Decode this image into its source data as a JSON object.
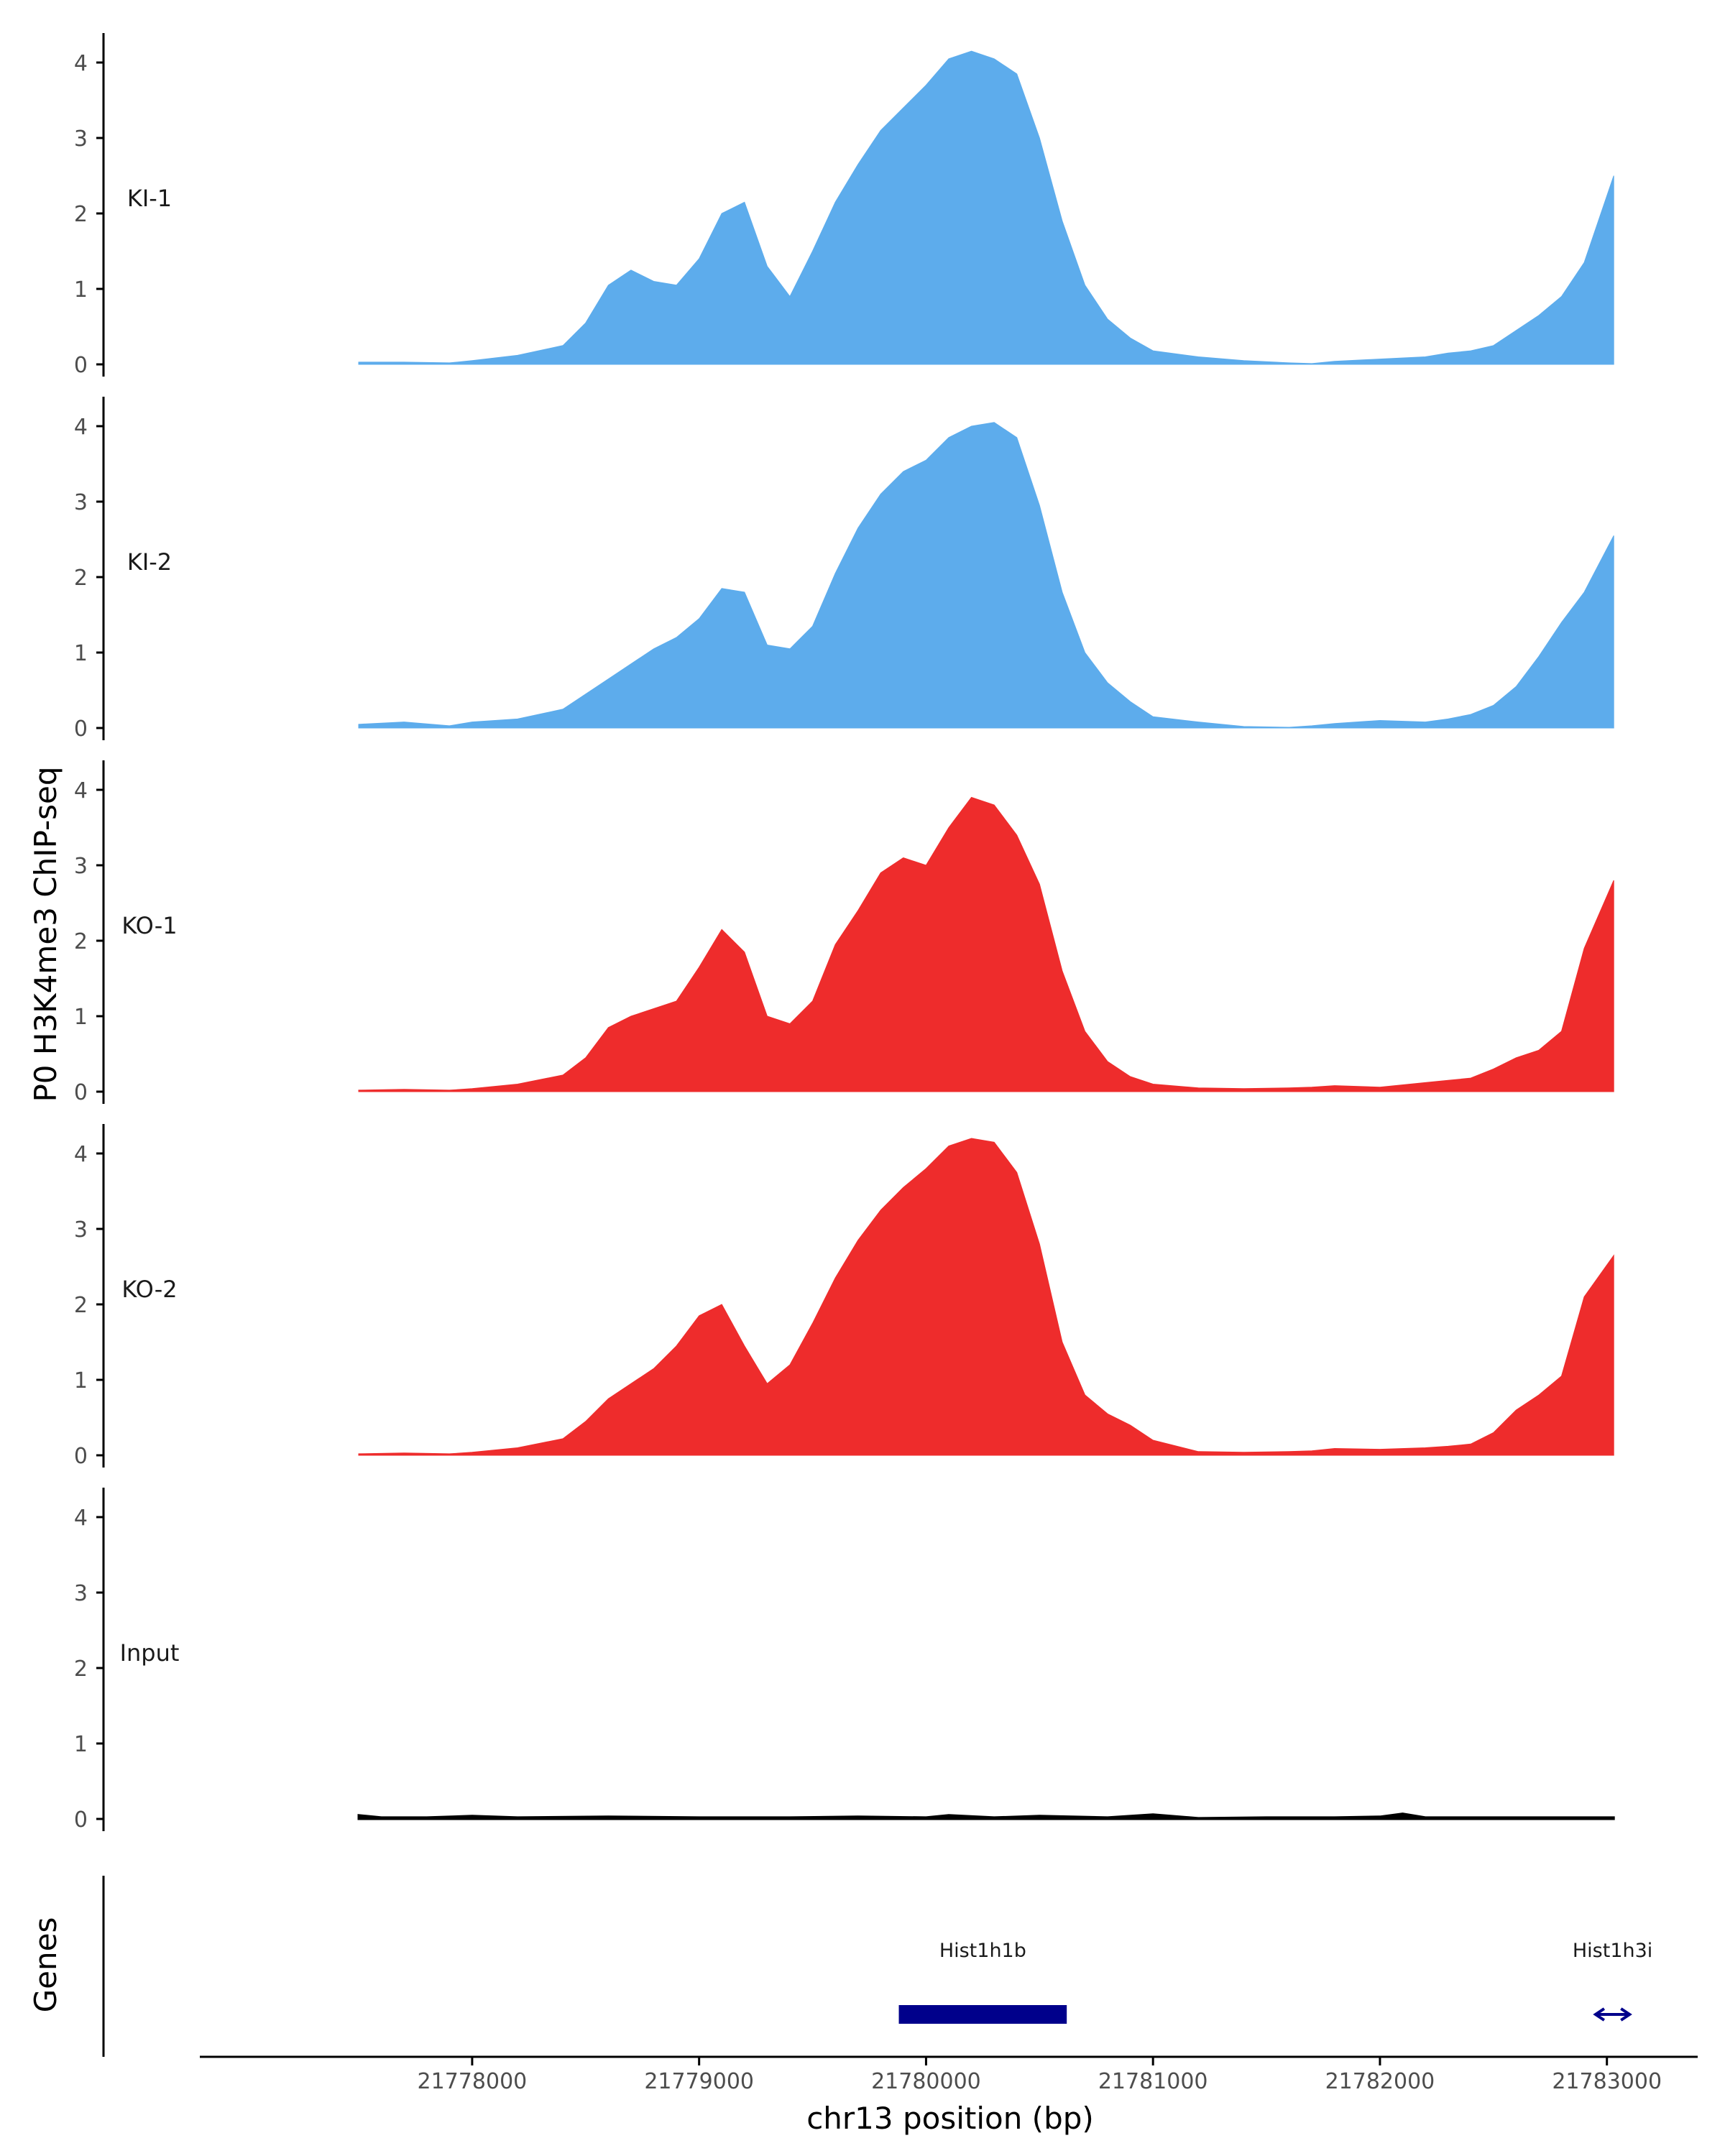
{
  "chart_data": {
    "type": "area",
    "ylabel": "P0 H3K4me3 ChIP-seq",
    "xlabel": "chr13 position (bp)",
    "x_ticks": [
      21778000,
      21779000,
      21780000,
      21781000,
      21782000,
      21783000
    ],
    "xlim": [
      21776800,
      21783400
    ],
    "ylim": [
      0,
      4.35
    ],
    "y_ticks": [
      0,
      1,
      2,
      3,
      4
    ],
    "colors": {
      "KI": "#5dacec",
      "KO": "#ee2c2c",
      "Input": "#000000",
      "gene": "#00008b"
    },
    "tracks": [
      {
        "label": "KI-1",
        "color": "#5dacec",
        "x": [
          21777500,
          21777700,
          21777900,
          21778000,
          21778200,
          21778400,
          21778500,
          21778600,
          21778700,
          21778800,
          21778900,
          21779000,
          21779100,
          21779200,
          21779300,
          21779400,
          21779500,
          21779600,
          21779700,
          21779800,
          21779900,
          21780000,
          21780100,
          21780200,
          21780300,
          21780400,
          21780500,
          21780600,
          21780700,
          21780800,
          21780900,
          21781000,
          21781200,
          21781400,
          21781600,
          21781700,
          21781800,
          21782000,
          21782200,
          21782300,
          21782400,
          21782500,
          21782600,
          21782700,
          21782800,
          21782900,
          21783030
        ],
        "values": [
          0.03,
          0.03,
          0.02,
          0.05,
          0.12,
          0.25,
          0.55,
          1.05,
          1.25,
          1.1,
          1.05,
          1.4,
          2.0,
          2.15,
          1.3,
          0.9,
          1.5,
          2.15,
          2.65,
          3.1,
          3.4,
          3.7,
          4.05,
          4.15,
          4.05,
          3.85,
          3.0,
          1.9,
          1.05,
          0.6,
          0.35,
          0.18,
          0.1,
          0.05,
          0.02,
          0.01,
          0.04,
          0.07,
          0.1,
          0.15,
          0.18,
          0.25,
          0.45,
          0.65,
          0.9,
          1.35,
          2.5
        ]
      },
      {
        "label": "KI-2",
        "color": "#5dacec",
        "x": [
          21777500,
          21777700,
          21777900,
          21778000,
          21778200,
          21778400,
          21778500,
          21778600,
          21778700,
          21778800,
          21778900,
          21779000,
          21779100,
          21779200,
          21779300,
          21779400,
          21779500,
          21779600,
          21779700,
          21779800,
          21779900,
          21780000,
          21780100,
          21780200,
          21780300,
          21780400,
          21780500,
          21780600,
          21780700,
          21780800,
          21780900,
          21781000,
          21781200,
          21781400,
          21781600,
          21781700,
          21781800,
          21782000,
          21782200,
          21782300,
          21782400,
          21782500,
          21782600,
          21782700,
          21782800,
          21782900,
          21783030
        ],
        "values": [
          0.05,
          0.08,
          0.03,
          0.08,
          0.12,
          0.25,
          0.45,
          0.65,
          0.85,
          1.05,
          1.2,
          1.45,
          1.85,
          1.8,
          1.1,
          1.05,
          1.35,
          2.05,
          2.65,
          3.1,
          3.4,
          3.55,
          3.85,
          4.0,
          4.05,
          3.85,
          2.95,
          1.8,
          1.0,
          0.6,
          0.35,
          0.15,
          0.08,
          0.02,
          0.01,
          0.03,
          0.06,
          0.1,
          0.08,
          0.12,
          0.18,
          0.3,
          0.55,
          0.95,
          1.4,
          1.8,
          2.55
        ]
      },
      {
        "label": "KO-1",
        "color": "#ee2c2c",
        "x": [
          21777500,
          21777700,
          21777900,
          21778000,
          21778200,
          21778400,
          21778500,
          21778600,
          21778700,
          21778800,
          21778900,
          21779000,
          21779100,
          21779200,
          21779300,
          21779400,
          21779500,
          21779600,
          21779700,
          21779800,
          21779900,
          21780000,
          21780100,
          21780200,
          21780300,
          21780400,
          21780500,
          21780600,
          21780700,
          21780800,
          21780900,
          21781000,
          21781200,
          21781400,
          21781600,
          21781700,
          21781800,
          21782000,
          21782200,
          21782300,
          21782400,
          21782500,
          21782600,
          21782700,
          21782800,
          21782900,
          21783030
        ],
        "values": [
          0.02,
          0.03,
          0.02,
          0.04,
          0.1,
          0.22,
          0.45,
          0.85,
          1.0,
          1.1,
          1.2,
          1.65,
          2.15,
          1.85,
          1.0,
          0.9,
          1.2,
          1.95,
          2.4,
          2.9,
          3.1,
          3.0,
          3.5,
          3.9,
          3.8,
          3.4,
          2.75,
          1.6,
          0.8,
          0.4,
          0.2,
          0.1,
          0.05,
          0.04,
          0.05,
          0.06,
          0.08,
          0.06,
          0.12,
          0.15,
          0.18,
          0.3,
          0.45,
          0.55,
          0.8,
          1.9,
          2.8
        ]
      },
      {
        "label": "KO-2",
        "color": "#ee2c2c",
        "x": [
          21777500,
          21777700,
          21777900,
          21778000,
          21778200,
          21778400,
          21778500,
          21778600,
          21778700,
          21778800,
          21778900,
          21779000,
          21779100,
          21779200,
          21779300,
          21779400,
          21779500,
          21779600,
          21779700,
          21779800,
          21779900,
          21780000,
          21780100,
          21780200,
          21780300,
          21780400,
          21780500,
          21780600,
          21780700,
          21780800,
          21780900,
          21781000,
          21781200,
          21781400,
          21781600,
          21781700,
          21781800,
          21782000,
          21782200,
          21782300,
          21782400,
          21782500,
          21782600,
          21782700,
          21782800,
          21782900,
          21783030
        ],
        "values": [
          0.02,
          0.03,
          0.02,
          0.04,
          0.1,
          0.22,
          0.45,
          0.75,
          0.95,
          1.15,
          1.45,
          1.85,
          2.0,
          1.45,
          0.95,
          1.2,
          1.75,
          2.35,
          2.85,
          3.25,
          3.55,
          3.8,
          4.1,
          4.2,
          4.15,
          3.75,
          2.8,
          1.5,
          0.8,
          0.55,
          0.4,
          0.2,
          0.05,
          0.04,
          0.05,
          0.06,
          0.09,
          0.08,
          0.1,
          0.12,
          0.15,
          0.3,
          0.6,
          0.8,
          1.05,
          2.1,
          2.65
        ]
      },
      {
        "label": "Input",
        "color": "#000000",
        "x": [
          21777500,
          21777600,
          21777800,
          21778000,
          21778200,
          21778600,
          21779000,
          21779400,
          21779700,
          21780000,
          21780100,
          21780300,
          21780500,
          21780800,
          21781000,
          21781200,
          21781500,
          21781800,
          21782000,
          21782100,
          21782200,
          21782500,
          21782800,
          21783030
        ],
        "values": [
          0.05,
          0.02,
          0.02,
          0.04,
          0.02,
          0.03,
          0.02,
          0.02,
          0.03,
          0.02,
          0.05,
          0.02,
          0.04,
          0.02,
          0.06,
          0.01,
          0.02,
          0.02,
          0.03,
          0.07,
          0.02,
          0.02,
          0.02,
          0.02
        ]
      }
    ],
    "genes_track": {
      "label": "Genes",
      "genes": [
        {
          "name": "Hist1h1b",
          "start": 21779880,
          "end": 21780620,
          "style": "block"
        },
        {
          "name": "Hist1h3i",
          "start": 21782950,
          "end": 21783100,
          "style": "arrow"
        }
      ]
    }
  }
}
